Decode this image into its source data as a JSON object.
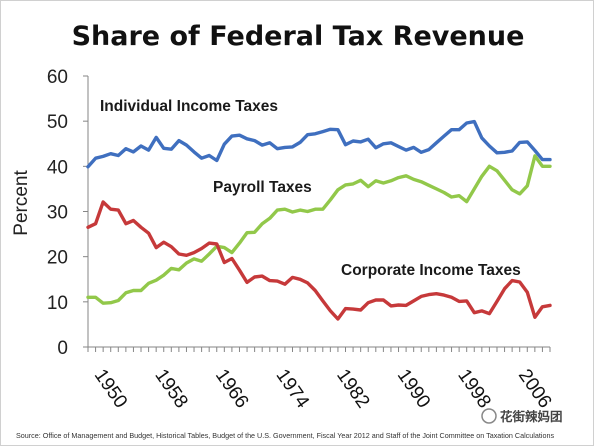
{
  "chart_data": {
    "type": "line",
    "title": "Share of Federal Tax Revenue",
    "xlabel": "",
    "ylabel": "Percent",
    "xlim": [
      1950,
      2011
    ],
    "ylim": [
      0,
      60
    ],
    "yticks": [
      0,
      10,
      20,
      30,
      40,
      50,
      60
    ],
    "xticks": [
      1950,
      1958,
      1966,
      1974,
      1982,
      1990,
      1998,
      2006
    ],
    "grid": false,
    "legend": "none",
    "x": [
      1950,
      1951,
      1952,
      1953,
      1954,
      1955,
      1956,
      1957,
      1958,
      1959,
      1960,
      1961,
      1962,
      1963,
      1964,
      1965,
      1966,
      1967,
      1968,
      1969,
      1970,
      1971,
      1972,
      1973,
      1974,
      1975,
      1976,
      1977,
      1978,
      1979,
      1980,
      1981,
      1982,
      1983,
      1984,
      1985,
      1986,
      1987,
      1988,
      1989,
      1990,
      1991,
      1992,
      1993,
      1994,
      1995,
      1996,
      1997,
      1998,
      1999,
      2000,
      2001,
      2002,
      2003,
      2004,
      2005,
      2006,
      2007,
      2008,
      2009,
      2010,
      2011
    ],
    "series": [
      {
        "name": "Individual Income Taxes",
        "color": "#3f6fbf",
        "values": [
          39.9,
          41.8,
          42.2,
          42.8,
          42.4,
          43.9,
          43.2,
          44.5,
          43.6,
          46.4,
          44.0,
          43.8,
          45.7,
          44.7,
          43.2,
          41.8,
          42.4,
          41.3,
          44.9,
          46.7,
          46.9,
          46.1,
          45.7,
          44.7,
          45.2,
          43.9,
          44.2,
          44.3,
          45.3,
          47.0,
          47.2,
          47.7,
          48.2,
          48.1,
          44.8,
          45.6,
          45.4,
          46.0,
          44.1,
          45.0,
          45.2,
          44.4,
          43.6,
          44.2,
          43.1,
          43.7,
          45.2,
          46.7,
          48.1,
          48.1,
          49.6,
          49.9,
          46.3,
          44.5,
          43.0,
          43.1,
          43.4,
          45.3,
          45.4,
          43.5,
          41.5,
          41.5
        ]
      },
      {
        "name": "Payroll Taxes",
        "color": "#92c84a",
        "values": [
          11.0,
          11.0,
          9.7,
          9.8,
          10.3,
          12.0,
          12.5,
          12.5,
          14.1,
          14.8,
          15.9,
          17.4,
          17.1,
          18.6,
          19.5,
          19.0,
          20.6,
          22.3,
          22.0,
          20.9,
          23.0,
          25.3,
          25.4,
          27.3,
          28.5,
          30.3,
          30.5,
          29.9,
          30.3,
          30.0,
          30.5,
          30.5,
          32.6,
          34.8,
          35.9,
          36.1,
          36.9,
          35.5,
          36.8,
          36.3,
          36.8,
          37.5,
          37.9,
          37.1,
          36.6,
          35.8,
          35.0,
          34.2,
          33.2,
          33.5,
          32.2,
          35.0,
          37.8,
          40.0,
          39.0,
          36.9,
          34.8,
          33.9,
          35.7,
          42.3,
          40.0,
          40.0
        ]
      },
      {
        "name": "Corporate Income Taxes",
        "color": "#c6393a",
        "values": [
          26.5,
          27.3,
          32.1,
          30.5,
          30.3,
          27.3,
          28.0,
          26.5,
          25.2,
          22.0,
          23.2,
          22.2,
          20.6,
          20.3,
          20.9,
          21.8,
          23.0,
          22.8,
          18.7,
          19.6,
          17.0,
          14.3,
          15.5,
          15.7,
          14.7,
          14.6,
          13.9,
          15.4,
          15.0,
          14.2,
          12.5,
          10.2,
          8.0,
          6.2,
          8.5,
          8.4,
          8.2,
          9.8,
          10.4,
          10.4,
          9.1,
          9.3,
          9.2,
          10.2,
          11.2,
          11.6,
          11.8,
          11.5,
          11.0,
          10.1,
          10.2,
          7.6,
          8.0,
          7.4,
          10.1,
          12.9,
          14.7,
          14.4,
          12.1,
          6.6,
          8.9,
          9.2
        ]
      }
    ],
    "annotations": [
      {
        "text": "Individual Income Taxes",
        "series": "Individual Income Taxes"
      },
      {
        "text": "Payroll Taxes",
        "series": "Payroll Taxes"
      },
      {
        "text": "Corporate Income Taxes",
        "series": "Corporate Income Taxes"
      }
    ]
  },
  "source": "Source: Office of Management and Budget, Historical Tables, Budget of the U.S. Government, Fiscal Year 2012 and Staff of the Joint Committee on Taxation Calculations",
  "watermark": "花街辣妈团"
}
